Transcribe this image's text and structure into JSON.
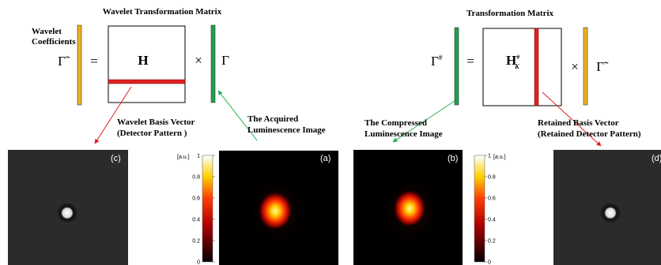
{
  "title_left": "Wavelet Transformation Matrix",
  "title_right": "Transformation Matrix",
  "coefficients_label": [
    "Wavelet",
    "Coefficients"
  ],
  "equation_left": {
    "lhs": "Γ̃",
    "equals": "=",
    "matrix": "H",
    "times": "×",
    "rhs": "Γ"
  },
  "equation_right": {
    "lhs": "Γ",
    "lhs_sup": "#",
    "equals": "=",
    "matrix": "H",
    "matrix_sup": "#",
    "matrix_sub": "K",
    "times": "×",
    "rhs": "Γ̃"
  },
  "annotations": {
    "basis_vector": [
      "Wavelet Basis Vector",
      "(Detector Pattern )"
    ],
    "acquired": [
      "The Acquired",
      "Luminescence Image"
    ],
    "compressed": [
      "The Compressed",
      "Luminescence Image"
    ],
    "retained": [
      "Retained Basis Vector",
      "(Retained Detector Pattern)"
    ]
  },
  "panels": [
    {
      "label": "(c)"
    },
    {
      "label": "(a)"
    },
    {
      "label": "(b)"
    },
    {
      "label": "(d)"
    }
  ],
  "colorbars": [
    {
      "unit": "[a.u.]",
      "ticks": [
        1,
        0.8,
        0.6,
        0.4,
        0.2,
        0
      ]
    },
    {
      "unit": "[a.u.]",
      "ticks": [
        1,
        0.8,
        0.6,
        0.4,
        0.2,
        0
      ]
    }
  ]
}
